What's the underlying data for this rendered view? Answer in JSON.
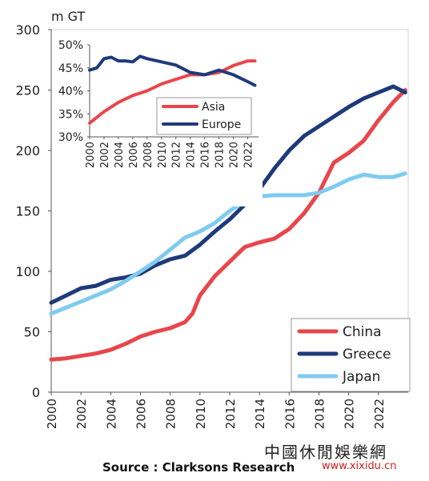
{
  "chart_data": [
    {
      "type": "line",
      "ylabel": "m GT",
      "ylim": [
        0,
        300
      ],
      "yticks": [
        "0",
        "50",
        "100",
        "150",
        "200",
        "250",
        "300"
      ],
      "xlim": [
        2000,
        2024
      ],
      "xticks": [
        "2000",
        "2002",
        "2004",
        "2006",
        "2008",
        "2010",
        "2012",
        "2014",
        "2016",
        "2018",
        "2020",
        "2022"
      ],
      "legend_position": "bottom-right",
      "grid": false,
      "series": [
        {
          "name": "China",
          "color": "#e8464b",
          "x": [
            2000,
            2001,
            2002,
            2003,
            2004,
            2005,
            2006,
            2007,
            2008,
            2009,
            2009.5,
            2010,
            2011,
            2012,
            2013,
            2014,
            2015,
            2016,
            2017,
            2018,
            2019,
            2020,
            2021,
            2022,
            2023,
            2023.8
          ],
          "y": [
            27,
            28,
            30,
            32,
            35,
            40,
            46,
            50,
            53,
            58,
            65,
            80,
            96,
            108,
            120,
            124,
            127,
            135,
            148,
            165,
            190,
            198,
            208,
            225,
            240,
            250
          ]
        },
        {
          "name": "Greece",
          "color": "#1f3a7a",
          "x": [
            2000,
            2001,
            2002,
            2003,
            2004,
            2005,
            2006,
            2007,
            2008,
            2009,
            2010,
            2011,
            2012,
            2013,
            2014,
            2015,
            2016,
            2017,
            2018,
            2019,
            2020,
            2021,
            2022,
            2023,
            2023.8
          ],
          "y": [
            74,
            80,
            86,
            88,
            93,
            95,
            98,
            105,
            110,
            113,
            122,
            133,
            143,
            155,
            168,
            185,
            200,
            212,
            220,
            228,
            236,
            243,
            248,
            253,
            248
          ]
        },
        {
          "name": "Japan",
          "color": "#7fcbf0",
          "x": [
            2000,
            2001,
            2002,
            2003,
            2004,
            2005,
            2006,
            2007,
            2008,
            2009,
            2010,
            2011,
            2012,
            2013,
            2014,
            2015,
            2016,
            2017,
            2018,
            2019,
            2020,
            2021,
            2022,
            2023,
            2023.8
          ],
          "y": [
            65,
            70,
            75,
            80,
            85,
            92,
            100,
            108,
            118,
            128,
            133,
            140,
            150,
            158,
            162,
            163,
            163,
            163,
            165,
            170,
            176,
            180,
            178,
            178,
            181
          ]
        }
      ]
    },
    {
      "type": "line",
      "ylim": [
        30,
        50
      ],
      "yticks": [
        "30%",
        "35%",
        "40%",
        "45%",
        "50%"
      ],
      "xlim": [
        2000,
        2023.5
      ],
      "xticks": [
        "2000",
        "2002",
        "2004",
        "2006",
        "2008",
        "2010",
        "2012",
        "2014",
        "2016",
        "2018",
        "2020",
        "2022"
      ],
      "legend_position": "center",
      "grid": false,
      "series": [
        {
          "name": "Asia",
          "color": "#e8464b",
          "x": [
            2000,
            2002,
            2004,
            2006,
            2008,
            2010,
            2012,
            2014,
            2016,
            2018,
            2020,
            2022,
            2023
          ],
          "y": [
            33,
            35.5,
            37.5,
            39,
            40,
            41.5,
            42.5,
            43.5,
            43.5,
            44,
            45.5,
            46.5,
            46.5
          ]
        },
        {
          "name": "Europe",
          "color": "#1f3a7a",
          "x": [
            2000,
            2001,
            2002,
            2003,
            2004,
            2005,
            2006,
            2007,
            2008,
            2010,
            2012,
            2014,
            2016,
            2018,
            2020,
            2022,
            2023
          ],
          "y": [
            44.5,
            45,
            47,
            47.3,
            46.5,
            46.5,
            46.3,
            47.5,
            47,
            46.3,
            45.6,
            44,
            43.5,
            44.5,
            43.5,
            42,
            41.2
          ]
        }
      ]
    }
  ],
  "footer": {
    "source": "Source : Clarksons Research",
    "watermark_cn": "中國休閒娛樂網",
    "watermark_url": "www.xixidu.cn"
  }
}
